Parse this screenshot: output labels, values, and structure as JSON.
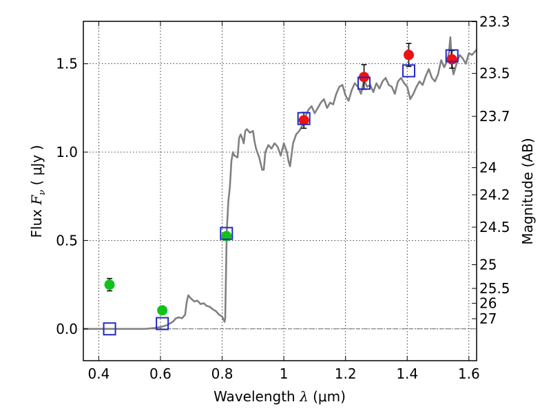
{
  "chart_data": {
    "type": "scatter",
    "xlabel": "Wavelength  λ (μm)",
    "ylabel": "Flux  F_ν  ( μJy )",
    "ylabel_parts": {
      "prefix": "Flux  ",
      "symbol": "F",
      "subscript": "ν",
      "suffix": "  ( μJy )"
    },
    "xlabel_parts": {
      "prefix": "Wavelength  ",
      "symbol": "λ",
      "suffix": " (μm)"
    },
    "ylabel_right": "Magnitude (AB)",
    "xlim": [
      0.35,
      1.625
    ],
    "ylim": [
      -0.18,
      1.74
    ],
    "grid": true,
    "x_ticks": [
      {
        "value": 0.4,
        "label": "0.4"
      },
      {
        "value": 0.6,
        "label": "0.6"
      },
      {
        "value": 0.8,
        "label": "0.8"
      },
      {
        "value": 1.0,
        "label": "1"
      },
      {
        "value": 1.2,
        "label": "1.2"
      },
      {
        "value": 1.4,
        "label": "1.4"
      },
      {
        "value": 1.6,
        "label": "1.6"
      }
    ],
    "y_ticks": [
      {
        "value": 0.0,
        "label": "0.0"
      },
      {
        "value": 0.5,
        "label": "0.5"
      },
      {
        "value": 1.0,
        "label": "1.0"
      },
      {
        "value": 1.5,
        "label": "1.5"
      }
    ],
    "magnitude_ticks": [
      {
        "mag": 23.3,
        "label": "23.3"
      },
      {
        "mag": 23.5,
        "label": "23.5"
      },
      {
        "mag": 23.7,
        "label": "23.7"
      },
      {
        "mag": 24.0,
        "label": "24"
      },
      {
        "mag": 24.2,
        "label": "24.2"
      },
      {
        "mag": 24.5,
        "label": "24.5"
      },
      {
        "mag": 25.0,
        "label": "25"
      },
      {
        "mag": 25.5,
        "label": "25.5"
      },
      {
        "mag": 26.0,
        "label": "26"
      },
      {
        "mag": 27.0,
        "label": "27"
      }
    ],
    "observed_green": [
      {
        "x": 0.435,
        "y": 0.25,
        "err": 0.035
      },
      {
        "x": 0.606,
        "y": 0.105,
        "err": 0.02
      },
      {
        "x": 0.814,
        "y": 0.525,
        "err": 0.02
      }
    ],
    "observed_red": [
      {
        "x": 1.065,
        "y": 1.18,
        "err": 0.045
      },
      {
        "x": 1.26,
        "y": 1.425,
        "err": 0.07
      },
      {
        "x": 1.405,
        "y": 1.55,
        "err": 0.065
      },
      {
        "x": 1.545,
        "y": 1.525,
        "err": 0.05
      }
    ],
    "model_squares": [
      {
        "x": 0.435,
        "y": 0.0
      },
      {
        "x": 0.606,
        "y": 0.03
      },
      {
        "x": 0.814,
        "y": 0.54
      },
      {
        "x": 1.065,
        "y": 1.19
      },
      {
        "x": 1.26,
        "y": 1.39
      },
      {
        "x": 1.405,
        "y": 1.46
      },
      {
        "x": 1.545,
        "y": 1.545
      }
    ],
    "sed_model": {
      "x": [
        0.35,
        0.5,
        0.55,
        0.58,
        0.6,
        0.62,
        0.64,
        0.65,
        0.66,
        0.67,
        0.68,
        0.685,
        0.69,
        0.7,
        0.71,
        0.72,
        0.73,
        0.74,
        0.75,
        0.76,
        0.77,
        0.78,
        0.79,
        0.8,
        0.805,
        0.808,
        0.81,
        0.815,
        0.82,
        0.825,
        0.83,
        0.835,
        0.84,
        0.85,
        0.855,
        0.86,
        0.865,
        0.87,
        0.875,
        0.88,
        0.89,
        0.9,
        0.905,
        0.91,
        0.92,
        0.93,
        0.935,
        0.94,
        0.95,
        0.96,
        0.97,
        0.98,
        0.99,
        1.0,
        1.01,
        1.015,
        1.02,
        1.03,
        1.04,
        1.05,
        1.06,
        1.07,
        1.08,
        1.09,
        1.1,
        1.11,
        1.12,
        1.13,
        1.14,
        1.15,
        1.16,
        1.17,
        1.18,
        1.19,
        1.2,
        1.21,
        1.22,
        1.23,
        1.24,
        1.25,
        1.26,
        1.27,
        1.28,
        1.29,
        1.3,
        1.31,
        1.32,
        1.33,
        1.34,
        1.35,
        1.36,
        1.37,
        1.38,
        1.39,
        1.4,
        1.41,
        1.42,
        1.43,
        1.44,
        1.45,
        1.46,
        1.47,
        1.48,
        1.49,
        1.5,
        1.51,
        1.52,
        1.53,
        1.535,
        1.54,
        1.545,
        1.55,
        1.56,
        1.57,
        1.58,
        1.59,
        1.6,
        1.61,
        1.625
      ],
      "y": [
        0.0,
        0.0,
        0.0,
        0.005,
        0.01,
        0.02,
        0.04,
        0.06,
        0.065,
        0.06,
        0.08,
        0.15,
        0.19,
        0.17,
        0.155,
        0.16,
        0.14,
        0.145,
        0.13,
        0.125,
        0.11,
        0.1,
        0.08,
        0.07,
        0.05,
        0.04,
        0.06,
        0.55,
        0.72,
        0.8,
        0.95,
        1.0,
        0.98,
        0.97,
        1.08,
        1.1,
        1.08,
        1.05,
        1.12,
        1.13,
        1.11,
        1.12,
        1.06,
        1.02,
        0.97,
        0.9,
        0.9,
        1.0,
        1.04,
        1.02,
        1.05,
        1.03,
        0.98,
        1.05,
        1.0,
        0.95,
        0.92,
        1.05,
        1.1,
        1.12,
        1.15,
        1.2,
        1.24,
        1.26,
        1.22,
        1.25,
        1.28,
        1.3,
        1.25,
        1.28,
        1.27,
        1.33,
        1.37,
        1.38,
        1.32,
        1.29,
        1.35,
        1.39,
        1.37,
        1.33,
        1.41,
        1.37,
        1.38,
        1.34,
        1.39,
        1.36,
        1.4,
        1.42,
        1.38,
        1.37,
        1.33,
        1.4,
        1.42,
        1.39,
        1.37,
        1.3,
        1.33,
        1.37,
        1.4,
        1.38,
        1.43,
        1.47,
        1.42,
        1.4,
        1.44,
        1.52,
        1.48,
        1.52,
        1.56,
        1.65,
        1.49,
        1.44,
        1.5,
        1.55,
        1.53,
        1.5,
        1.56,
        1.55,
        1.58
      ]
    },
    "colors": {
      "green": "#11c21b",
      "red": "#ee1111",
      "square": "#1f27c6",
      "model_line": "#808080",
      "errorbar": "#000000",
      "zero_line": "#666666"
    }
  }
}
